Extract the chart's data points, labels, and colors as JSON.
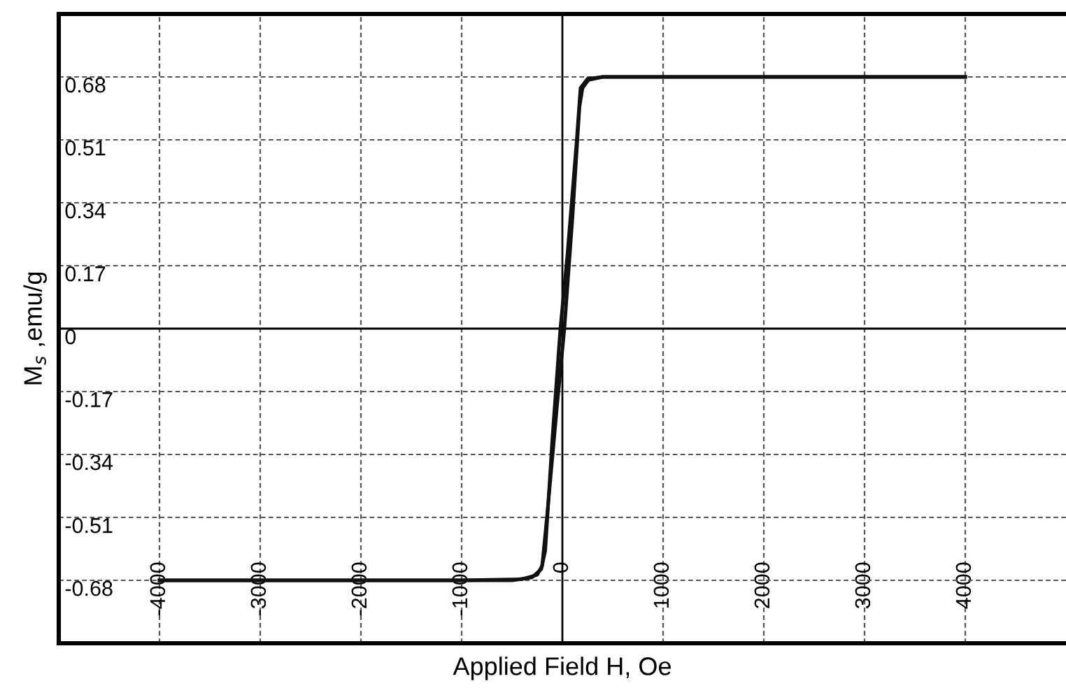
{
  "chart_data": {
    "type": "line",
    "xlabel": "Applied Field H, Oe",
    "ylabel": "M$_{s}$ ,emu/g",
    "series": [
      {
        "color": "#111111",
        "x": [
          -4000,
          -1000,
          -400,
          -250,
          -200,
          -150,
          -50,
          20,
          100,
          170,
          200,
          260,
          400,
          4000
        ],
        "values": [
          -0.68,
          -0.68,
          -0.677,
          -0.665,
          -0.64,
          -0.5,
          -0.2,
          0,
          0.3,
          0.6,
          0.65,
          0.672,
          0.68,
          0.68
        ]
      },
      {
        "color": "#111111",
        "x": [
          4000,
          400,
          250,
          180,
          140,
          50,
          -20,
          -100,
          -170,
          -210,
          -300,
          -500,
          -4000
        ],
        "values": [
          0.68,
          0.68,
          0.675,
          0.65,
          0.5,
          0.2,
          0,
          -0.3,
          -0.6,
          -0.65,
          -0.672,
          -0.68,
          -0.68
        ]
      }
    ],
    "xlim": [
      -5000,
      5000
    ],
    "xticks": [
      -4000,
      -3000,
      -2000,
      -1000,
      0,
      1000,
      2000,
      3000,
      4000
    ],
    "ylim": [
      -0.85,
      0.85
    ],
    "yticks": [
      -0.68,
      -0.51,
      -0.34,
      -0.17,
      0,
      0.17,
      0.34,
      0.51,
      0.68
    ],
    "grid": true,
    "line_style": "solid",
    "marker": "none"
  }
}
